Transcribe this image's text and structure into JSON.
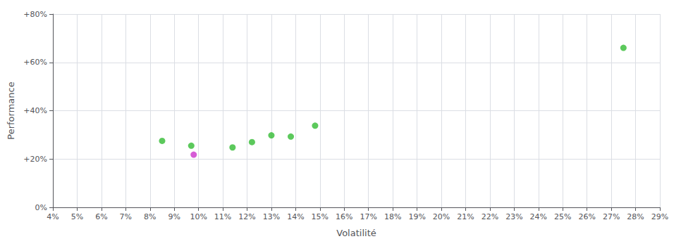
{
  "chart_data": {
    "type": "scatter",
    "xlabel": "Volatilité",
    "ylabel": "Performance",
    "xlim": [
      0.04,
      0.29
    ],
    "ylim": [
      0.0,
      0.8
    ],
    "xticks": [
      {
        "value": 0.04,
        "label": "4%"
      },
      {
        "value": 0.05,
        "label": "5%"
      },
      {
        "value": 0.06,
        "label": "6%"
      },
      {
        "value": 0.07,
        "label": "7%"
      },
      {
        "value": 0.08,
        "label": "8%"
      },
      {
        "value": 0.09,
        "label": "9%"
      },
      {
        "value": 0.1,
        "label": "10%"
      },
      {
        "value": 0.11,
        "label": "11%"
      },
      {
        "value": 0.12,
        "label": "12%"
      },
      {
        "value": 0.13,
        "label": "13%"
      },
      {
        "value": 0.14,
        "label": "14%"
      },
      {
        "value": 0.15,
        "label": "15%"
      },
      {
        "value": 0.16,
        "label": "16%"
      },
      {
        "value": 0.17,
        "label": "17%"
      },
      {
        "value": 0.18,
        "label": "18%"
      },
      {
        "value": 0.19,
        "label": "19%"
      },
      {
        "value": 0.2,
        "label": "20%"
      },
      {
        "value": 0.21,
        "label": "21%"
      },
      {
        "value": 0.22,
        "label": "22%"
      },
      {
        "value": 0.23,
        "label": "23%"
      },
      {
        "value": 0.24,
        "label": "24%"
      },
      {
        "value": 0.25,
        "label": "25%"
      },
      {
        "value": 0.26,
        "label": "26%"
      },
      {
        "value": 0.27,
        "label": "27%"
      },
      {
        "value": 0.28,
        "label": "28%"
      },
      {
        "value": 0.29,
        "label": "29%"
      }
    ],
    "yticks": [
      {
        "value": 0.0,
        "label": "0%"
      },
      {
        "value": 0.2,
        "label": "+20%"
      },
      {
        "value": 0.4,
        "label": "+40%"
      },
      {
        "value": 0.6,
        "label": "+60%"
      },
      {
        "value": 0.8,
        "label": "+80%"
      }
    ],
    "grid": true,
    "series": [
      {
        "color": "#33bb33",
        "x": [
          0.085,
          0.097,
          0.114,
          0.122,
          0.13,
          0.138,
          0.148,
          0.275
        ],
        "values": [
          0.275,
          0.255,
          0.248,
          0.27,
          0.298,
          0.293,
          0.338,
          0.66
        ]
      },
      {
        "color": "#cc33cc",
        "x": [
          0.098
        ],
        "values": [
          0.218
        ]
      }
    ]
  }
}
